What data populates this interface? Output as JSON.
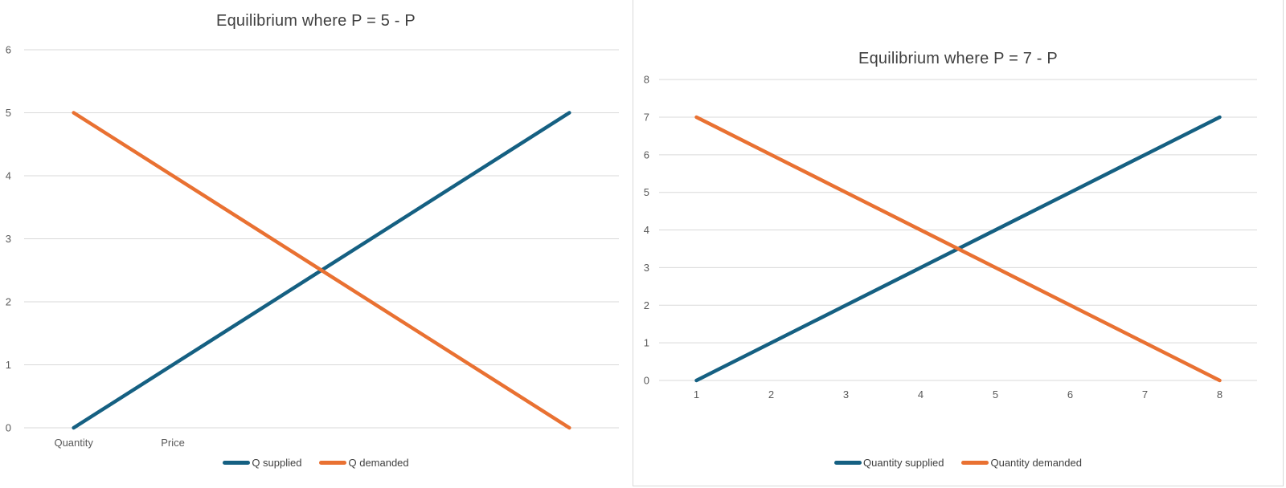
{
  "chart_data": [
    {
      "type": "line",
      "title": "Equilibrium where P = 5 - P",
      "categories": [
        "Quantity",
        "Price",
        "",
        "",
        "",
        ""
      ],
      "series": [
        {
          "name": "Q supplied",
          "values": [
            0,
            1,
            2,
            3,
            4,
            5
          ],
          "color": "#156082"
        },
        {
          "name": "Q demanded",
          "values": [
            5,
            4,
            3,
            2,
            1,
            0
          ],
          "color": "#E97132"
        }
      ],
      "xlabel": "",
      "ylabel": "",
      "ylim": [
        0,
        6
      ],
      "y_tick_step": 1,
      "grid": true,
      "legend_position": "bottom"
    },
    {
      "type": "line",
      "title": "Equilibrium where P = 7 - P",
      "categories": [
        "1",
        "2",
        "3",
        "4",
        "5",
        "6",
        "7",
        "8"
      ],
      "series": [
        {
          "name": "Quantity supplied",
          "values": [
            0,
            1,
            2,
            3,
            4,
            5,
            6,
            7
          ],
          "color": "#156082"
        },
        {
          "name": "Quantity demanded",
          "values": [
            7,
            6,
            5,
            4,
            3,
            2,
            1,
            0
          ],
          "color": "#E97132"
        }
      ],
      "xlabel": "",
      "ylabel": "",
      "ylim": [
        0,
        8
      ],
      "y_tick_step": 1,
      "grid": true,
      "legend_position": "bottom"
    }
  ],
  "colors": {
    "supply_line": "#156082",
    "demand_line": "#E97132",
    "gridline": "#D9D9D9",
    "axis_text": "#595959",
    "title_text": "#404040",
    "legend_text": "#404040",
    "chart_border": "#D9D9D9",
    "background": "#FFFFFF"
  }
}
